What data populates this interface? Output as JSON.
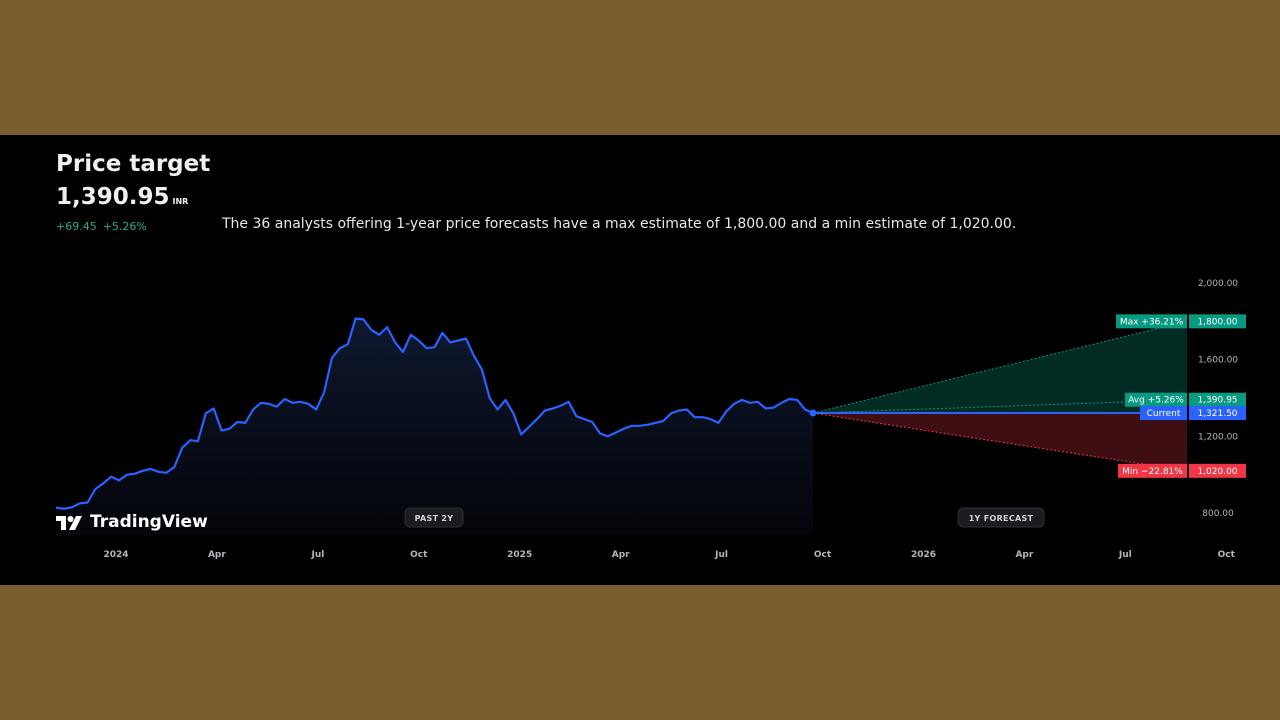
{
  "header": {
    "title": "Price target",
    "price": "1,390.95",
    "currency": "INR",
    "change_abs": "+69.45",
    "change_pct": "+5.26%",
    "summary": "The 36 analysts offering 1-year price forecasts have a max estimate of 1,800.00 and a min estimate of 1,020.00."
  },
  "brand": {
    "name": "TradingView"
  },
  "colors": {
    "line": "#2962ff",
    "max": "#089981",
    "min": "#f23645",
    "current": "#2962ff"
  },
  "chart_data": {
    "type": "line",
    "x_labels": [
      "2024",
      "Apr",
      "Jul",
      "Oct",
      "2025",
      "Apr",
      "Jul",
      "Oct",
      "2026",
      "Apr",
      "Jul",
      "Oct"
    ],
    "y_ticks": [
      "2,000.00",
      "1,600.00",
      "1,200.00",
      "800.00"
    ],
    "ylim": [
      800,
      2000
    ],
    "periods": {
      "past": "PAST 2Y",
      "forecast": "1Y FORECAST"
    },
    "series": [
      {
        "values": [
          828,
          822,
          830,
          850,
          855,
          925,
          955,
          990,
          970,
          1000,
          1005,
          1020,
          1030,
          1015,
          1010,
          1040,
          1140,
          1180,
          1175,
          1320,
          1345,
          1230,
          1240,
          1275,
          1270,
          1340,
          1375,
          1370,
          1355,
          1395,
          1375,
          1380,
          1370,
          1340,
          1430,
          1610,
          1660,
          1680,
          1815,
          1810,
          1755,
          1730,
          1770,
          1690,
          1640,
          1730,
          1700,
          1660,
          1665,
          1740,
          1690,
          1700,
          1710,
          1620,
          1550,
          1400,
          1340,
          1390,
          1320,
          1210,
          1250,
          1290,
          1335,
          1345,
          1360,
          1380,
          1305,
          1290,
          1275,
          1215,
          1200,
          1220,
          1240,
          1255,
          1255,
          1260,
          1270,
          1280,
          1320,
          1335,
          1340,
          1300,
          1300,
          1290,
          1270,
          1330,
          1370,
          1390,
          1375,
          1380,
          1345,
          1350,
          1375,
          1395,
          1390,
          1340,
          1321.5
        ]
      }
    ],
    "forecast": {
      "max": {
        "label": "Max +36.21%",
        "value": 1800,
        "value_label": "1,800.00"
      },
      "avg": {
        "label": "Avg +5.26%",
        "value": 1390.95,
        "value_label": "1,390.95"
      },
      "current": {
        "label": "Current",
        "value": 1321.5,
        "value_label": "1,321.50"
      },
      "min": {
        "label": "Min −22.81%",
        "value": 1020,
        "value_label": "1,020.00"
      }
    }
  }
}
